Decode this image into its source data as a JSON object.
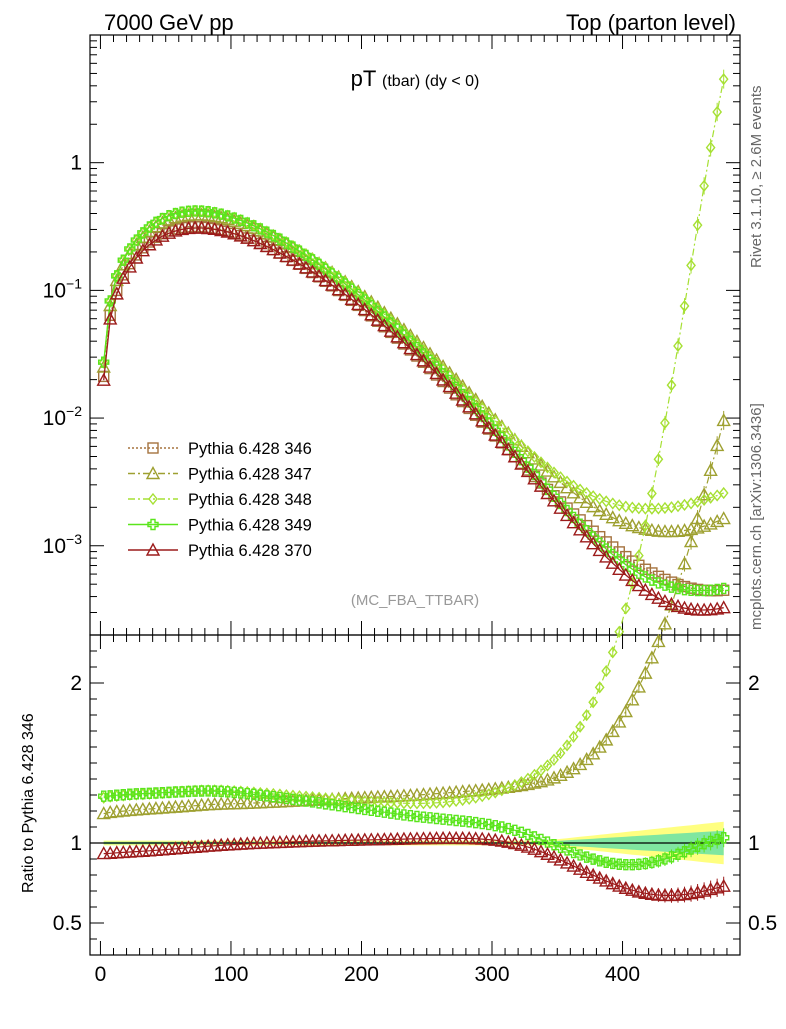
{
  "header": {
    "left": "7000 GeV pp",
    "right": "Top (parton level)"
  },
  "side_labels": {
    "rivet": "Rivet 3.1.10, ≥ 2.6M events",
    "mcplots": "mcplots.cern.ch [arXiv:1306.3436]"
  },
  "chart_data": [
    {
      "type": "line",
      "title_main": "pT",
      "title_sub": "(tbar) (dy < 0)",
      "watermark": "(MC_FBA_TTBAR)",
      "yscale": "log",
      "xlim": [
        -8,
        490
      ],
      "ylim": [
        0.0002,
        10
      ],
      "ytick_labels": [
        "1",
        "10^-1",
        "10^-2",
        "10^-3"
      ],
      "legend_position": "lower-left",
      "x_formula": "x_i = 2.5 + 5*i, i = 0..95",
      "series": [
        {
          "name": "Pythia 6.428 346",
          "color": "#a5733f",
          "marker": "square-open",
          "line": "dotted",
          "values": [
            0.0212,
            0.0638,
            0.1,
            0.1323,
            0.1618,
            0.1895,
            0.2155,
            0.2393,
            0.2601,
            0.2778,
            0.292,
            0.3028,
            0.3104,
            0.3148,
            0.3163,
            0.3151,
            0.3115,
            0.3059,
            0.2985,
            0.2898,
            0.2799,
            0.269,
            0.2575,
            0.2455,
            0.2332,
            0.2207,
            0.2082,
            0.1958,
            0.1836,
            0.1716,
            0.16,
            0.1487,
            0.1379,
            0.1276,
            0.1178,
            0.1085,
            0.09967,
            0.09137,
            0.08358,
            0.07629,
            0.06949,
            0.06317,
            0.0573,
            0.05188,
            0.04688,
            0.04227,
            0.03803,
            0.03415,
            0.0306,
            0.02736,
            0.02441,
            0.02174,
            0.01933,
            0.01716,
            0.01521,
            0.01346,
            0.0119,
            0.01052,
            0.009289,
            0.008199,
            0.007237,
            0.00639,
            0.005646,
            0.004993,
            0.004421,
            0.00392,
            0.003481,
            0.003097,
            0.00276,
            0.002464,
            0.002204,
            0.001974,
            0.001773,
            0.001595,
            0.001438,
            0.0013,
            0.001178,
            0.001072,
            0.0009778,
            0.000895,
            0.0008222,
            0.0007584,
            0.0007027,
            0.0006543,
            0.0006123,
            0.0005761,
            0.0005451,
            0.0005189,
            0.000497,
            0.0004793,
            0.0004653,
            0.000455,
            0.0004482,
            0.0004448,
            0.0004448,
            0.0004482
          ]
        },
        {
          "name": "Pythia 6.428 347",
          "color": "#9ea030",
          "marker": "triangle-open",
          "line": "dashdot",
          "values": [
            0.0251,
            0.076,
            0.1196,
            0.1587,
            0.1947,
            0.2287,
            0.2607,
            0.2902,
            0.3162,
            0.3384,
            0.3566,
            0.3707,
            0.3809,
            0.3873,
            0.3901,
            0.3896,
            0.386,
            0.3797,
            0.3711,
            0.3606,
            0.3486,
            0.3353,
            0.3214,
            0.3068,
            0.2918,
            0.2766,
            0.2613,
            0.2461,
            0.2311,
            0.2164,
            0.2021,
            0.1882,
            0.1748,
            0.162,
            0.1497,
            0.1381,
            0.1271,
            0.1167,
            0.1069,
            0.09774,
            0.08917,
            0.08118,
            0.07376,
            0.06687,
            0.06051,
            0.05464,
            0.04925,
            0.0443,
            0.03977,
            0.03564,
            0.03187,
            0.02845,
            0.02535,
            0.02255,
            0.02004,
            0.01778,
            0.01576,
            0.01396,
            0.01236,
            0.01094,
            0.009687,
            0.008583,
            0.007611,
            0.006757,
            0.00601,
            0.005355,
            0.004784,
            0.004284,
            0.003848,
            0.003467,
            0.003136,
            0.002847,
            0.002596,
            0.002378,
            0.002189,
            0.002025,
            0.001884,
            0.001763,
            0.00166,
            0.001572,
            0.001498,
            0.001437,
            0.001388,
            0.001349,
            0.001321,
            0.001302,
            0.001292,
            0.001291,
            0.001299,
            0.001316,
            0.001342,
            0.001378,
            0.001424,
            0.001481,
            0.00155,
            0.001632
          ]
        },
        {
          "name": "Pythia 6.428 348",
          "color": "#a6e033",
          "marker": "diamond-open",
          "line": "dashdot",
          "values": [
            0.0272,
            0.0823,
            0.1294,
            0.1716,
            0.2104,
            0.2469,
            0.2812,
            0.3129,
            0.3408,
            0.3647,
            0.3842,
            0.3993,
            0.4101,
            0.4167,
            0.4195,
            0.4185,
            0.414,
            0.4066,
            0.3966,
            0.3845,
            0.3706,
            0.3556,
            0.3396,
            0.323,
            0.306,
            0.289,
            0.2719,
            0.2551,
            0.2385,
            0.2224,
            0.2068,
            0.1918,
            0.1774,
            0.1637,
            0.1507,
            0.1384,
            0.1268,
            0.116,
            0.1059,
            0.09642,
            0.08764,
            0.07951,
            0.07199,
            0.06507,
            0.05869,
            0.05284,
            0.04749,
            0.04261,
            0.03818,
            0.03415,
            0.0305,
            0.0272,
            0.02424,
            0.02159,
            0.01921,
            0.01708,
            0.01518,
            0.0135,
            0.01201,
            0.01069,
            0.009522,
            0.008495,
            0.007591,
            0.006798,
            0.006103,
            0.005495,
            0.004964,
            0.004501,
            0.004097,
            0.003746,
            0.003442,
            0.003178,
            0.00295,
            0.002754,
            0.002587,
            0.002444,
            0.002324,
            0.002224,
            0.002143,
            0.002077,
            0.002027,
            0.00199,
            0.001965,
            0.001952,
            0.00195,
            0.001958,
            0.001976,
            0.002004,
            0.002041,
            0.002088,
            0.002145,
            0.002212,
            0.002289,
            0.002378,
            0.002477,
            0.002588
          ]
        },
        {
          "name": "Pythia 6.428 349",
          "color": "#5ae51c",
          "marker": "cross-open",
          "line": "solid",
          "values": [
            0.0274,
            0.0826,
            0.1299,
            0.1722,
            0.2111,
            0.2477,
            0.282,
            0.3136,
            0.3414,
            0.3651,
            0.3844,
            0.3993,
            0.4098,
            0.4162,
            0.4187,
            0.4175,
            0.4128,
            0.4051,
            0.3948,
            0.3825,
            0.3684,
            0.3531,
            0.3369,
            0.3201,
            0.3029,
            0.2857,
            0.2684,
            0.2514,
            0.2347,
            0.2185,
            0.2028,
            0.1877,
            0.1733,
            0.1596,
            0.1466,
            0.1344,
            0.1229,
            0.1121,
            0.1021,
            0.09274,
            0.08408,
            0.07607,
            0.06867,
            0.06187,
            0.05563,
            0.04992,
            0.04471,
            0.03997,
            0.03567,
            0.03177,
            0.02825,
            0.02507,
            0.02221,
            0.01965,
            0.01735,
            0.0153,
            0.01348,
            0.01186,
            0.01042,
            0.009148,
            0.008022,
            0.007029,
            0.006156,
            0.005389,
            0.004716,
            0.004128,
            0.003614,
            0.003166,
            0.002776,
            0.002437,
            0.002143,
            0.001888,
            0.001667,
            0.001476,
            0.001311,
            0.001169,
            0.001047,
            0.0009424,
            0.0008527,
            0.0007761,
            0.0007109,
            0.0006557,
            0.0006092,
            0.0005703,
            0.0005381,
            0.0005118,
            0.0004907,
            0.0004742,
            0.0004618,
            0.0004531,
            0.0004477,
            0.0004454,
            0.0004459,
            0.0004491,
            0.0004548,
            0.0004629
          ]
        },
        {
          "name": "Pythia 6.428 370",
          "color": "#9c1b1b",
          "marker": "triangle-open",
          "line": "solid",
          "values": [
            0.0198,
            0.0597,
            0.0939,
            0.1245,
            0.1527,
            0.1793,
            0.2044,
            0.2277,
            0.2482,
            0.2659,
            0.2805,
            0.2919,
            0.3002,
            0.3055,
            0.3079,
            0.3077,
            0.3052,
            0.3006,
            0.2943,
            0.2864,
            0.2772,
            0.2671,
            0.2562,
            0.2448,
            0.2329,
            0.2208,
            0.2087,
            0.1965,
            0.1845,
            0.1728,
            0.1613,
            0.1502,
            0.1395,
            0.1292,
            0.1194,
            0.11,
            0.1012,
            0.09288,
            0.08502,
            0.07767,
            0.07081,
            0.06442,
            0.05849,
            0.053,
            0.04793,
            0.04326,
            0.03896,
            0.03502,
            0.0314,
            0.0281,
            0.02509,
            0.02236,
            0.01989,
            0.01766,
            0.01565,
            0.01385,
            0.01224,
            0.0108,
            0.009516,
            0.008375,
            0.007362,
            0.006466,
            0.005674,
            0.004976,
            0.004361,
            0.00382,
            0.003346,
            0.00293,
            0.002566,
            0.002248,
            0.00197,
            0.001728,
            0.001517,
            0.001334,
            0.001175,
            0.001038,
            0.0009196,
            0.0008175,
            0.0007296,
            0.0006542,
            0.0005897,
            0.0005347,
            0.0004881,
            0.0004488,
            0.0004159,
            0.0003887,
            0.0003665,
            0.0003488,
            0.0003351,
            0.000325,
            0.0003182,
            0.0003145,
            0.0003137,
            0.0003156,
            0.0003202,
            0.0003273
          ]
        }
      ]
    },
    {
      "type": "line",
      "ylabel": "Ratio to Pythia 6.428 346",
      "xlim": [
        -8,
        490
      ],
      "ylim": [
        0.3,
        2.3
      ],
      "reference_line": 1,
      "xtick_labels": [
        "0",
        "100",
        "200",
        "300",
        "400"
      ],
      "ytick_labels": [
        "0.5",
        "1",
        "2"
      ],
      "uncertainty_bands": [
        "#ffff80",
        "#80e6a0"
      ]
    }
  ]
}
